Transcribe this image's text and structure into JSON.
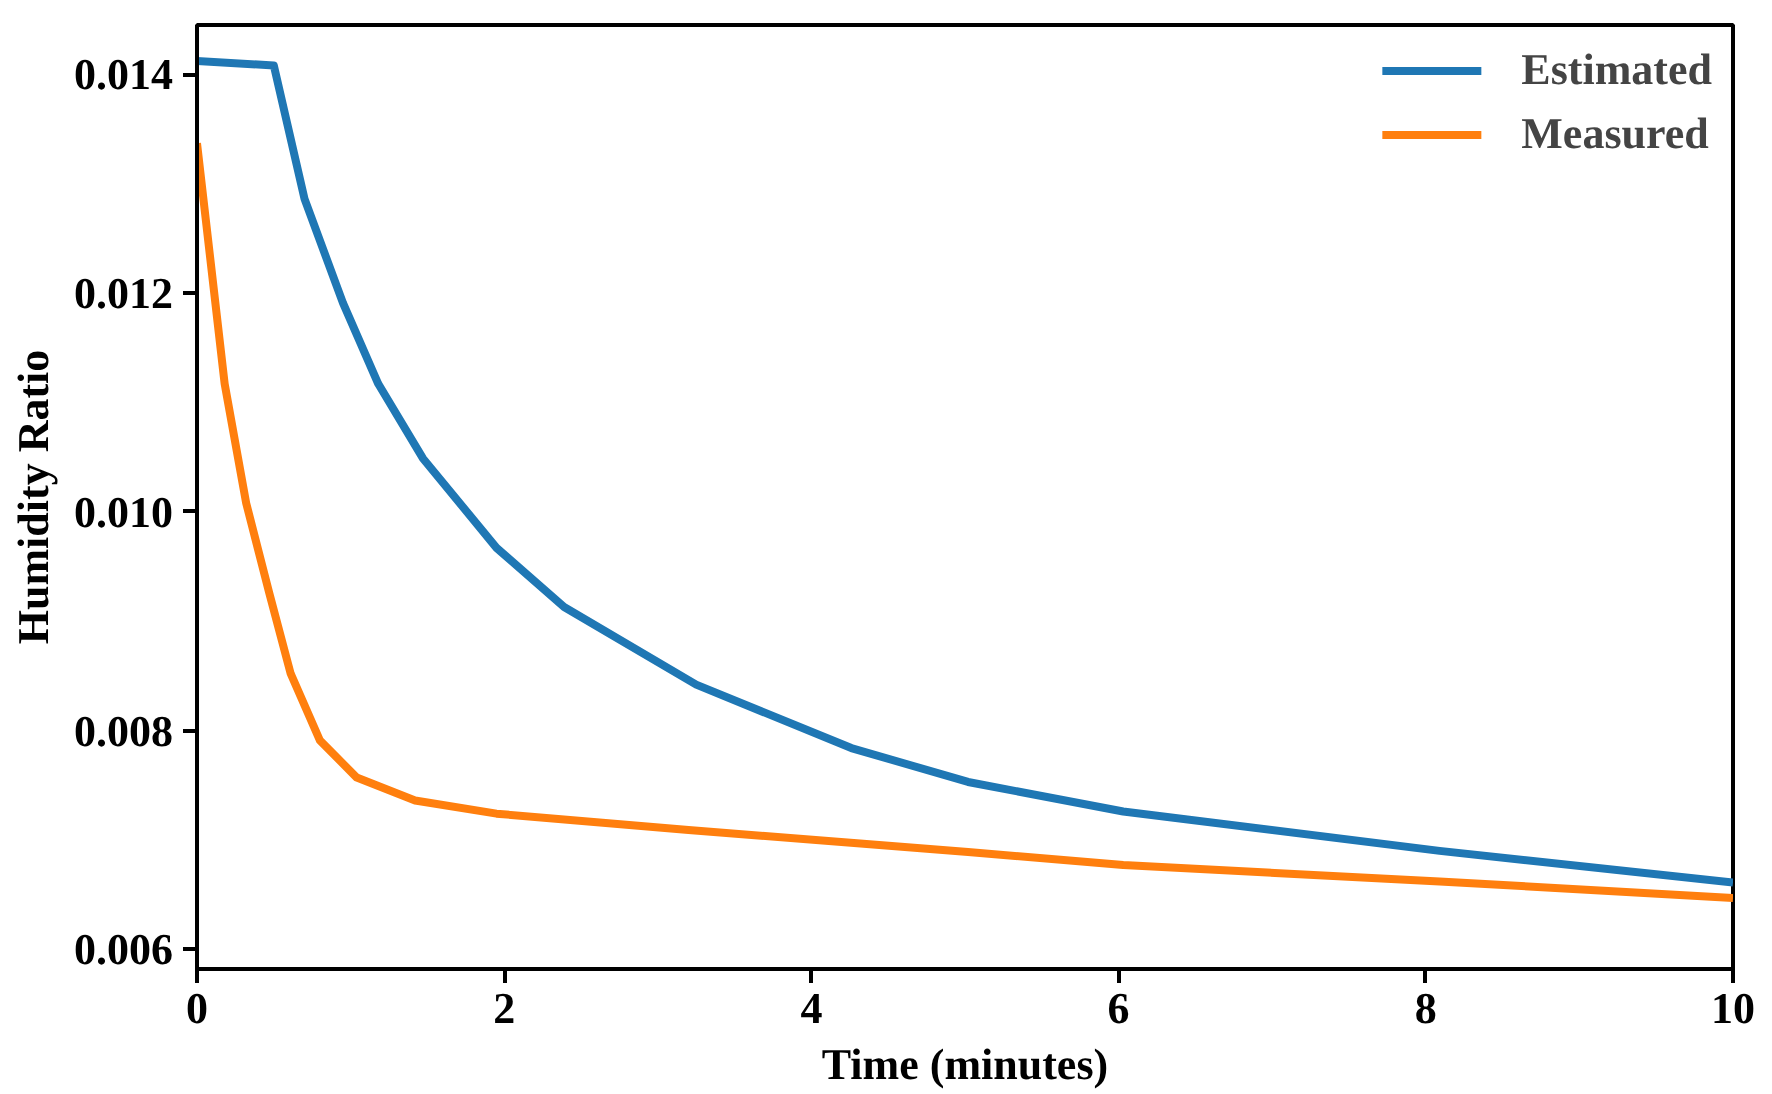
{
  "chart_data": {
    "type": "line",
    "xlabel": "Time (minutes)",
    "ylabel": "Humidity Ratio",
    "xlim": [
      0,
      10
    ],
    "ylim": [
      0.00582,
      0.01445
    ],
    "xticks": [
      0,
      2,
      4,
      6,
      8,
      10
    ],
    "yticks": [
      {
        "value": 0.006,
        "label": "0.006"
      },
      {
        "value": 0.008,
        "label": "0.008"
      },
      {
        "value": 0.01,
        "label": "0.010"
      },
      {
        "value": 0.012,
        "label": "0.012"
      },
      {
        "value": 0.014,
        "label": "0.014"
      }
    ],
    "grid": false,
    "legend": "top right",
    "line_style": "solid",
    "series": [
      {
        "name": "Estimated",
        "color": "#1f77b4",
        "x": [
          0,
          0.5,
          0.7,
          0.95,
          1.18,
          1.47,
          1.95,
          2.39,
          3.25,
          4.26,
          5.02,
          6.03,
          8.09,
          10
        ],
        "values": [
          0.01412,
          0.01408,
          0.01286,
          0.01191,
          0.01117,
          0.01049,
          0.00967,
          0.00913,
          0.00842,
          0.00784,
          0.00753,
          0.00726,
          0.0069,
          0.00661
        ]
      },
      {
        "name": "Measured",
        "color": "#ff7f0e",
        "x": [
          0,
          0.18,
          0.32,
          0.47,
          0.61,
          0.8,
          1.04,
          1.42,
          1.95,
          3.2,
          5.02,
          6.03,
          8.09,
          10
        ],
        "values": [
          0.01337,
          0.01117,
          0.01008,
          0.00926,
          0.00852,
          0.00791,
          0.00757,
          0.00736,
          0.00724,
          0.00709,
          0.00689,
          0.00677,
          0.00662,
          0.00647
        ]
      }
    ]
  }
}
